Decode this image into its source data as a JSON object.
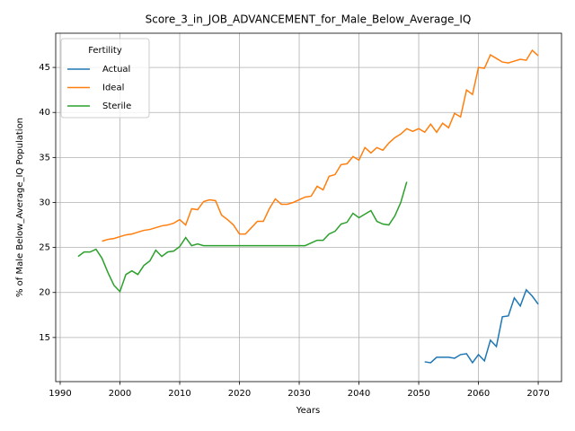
{
  "chart_data": {
    "type": "line",
    "title": "Score_3_in_JOB_ADVANCEMENT_for_Male_Below_Average_IQ",
    "x_label": "Years",
    "y_label": "% of Male Below_Average_IQ Population",
    "legend_title": "Fertility",
    "legend": "upper left",
    "grid": true,
    "x": [
      1993,
      1994,
      1995,
      1996,
      1997,
      1998,
      1999,
      2000,
      2001,
      2002,
      2003,
      2004,
      2005,
      2006,
      2007,
      2008,
      2009,
      2010,
      2011,
      2012,
      2013,
      2014,
      2015,
      2016,
      2017,
      2018,
      2019,
      2020,
      2021,
      2022,
      2023,
      2024,
      2025,
      2026,
      2027,
      2028,
      2029,
      2030,
      2031,
      2032,
      2033,
      2034,
      2035,
      2036,
      2037,
      2038,
      2039,
      2040,
      2041,
      2042,
      2043,
      2044,
      2045,
      2046,
      2047,
      2048,
      2049,
      2050,
      2051,
      2052,
      2053,
      2054,
      2055,
      2056,
      2057,
      2058,
      2059,
      2060,
      2061,
      2062,
      2063,
      2064,
      2065,
      2066,
      2067,
      2068,
      2069,
      2070
    ],
    "series": [
      {
        "name": "Actual",
        "color": "#1f77b4",
        "values": [
          null,
          null,
          null,
          null,
          null,
          null,
          null,
          null,
          null,
          null,
          null,
          null,
          null,
          null,
          null,
          null,
          null,
          null,
          null,
          null,
          null,
          null,
          null,
          null,
          null,
          null,
          null,
          null,
          null,
          null,
          null,
          null,
          null,
          null,
          null,
          null,
          null,
          null,
          null,
          null,
          null,
          null,
          null,
          null,
          null,
          null,
          null,
          null,
          null,
          null,
          null,
          null,
          null,
          null,
          null,
          null,
          null,
          null,
          12.3,
          12.2,
          12.8,
          12.8,
          12.8,
          12.7,
          13.1,
          13.2,
          12.2,
          13.1,
          12.4,
          14.7,
          14.0,
          17.3,
          17.4,
          19.4,
          18.5,
          20.3,
          19.6,
          18.7
        ]
      },
      {
        "name": "Ideal",
        "color": "#ff7f0e",
        "values": [
          null,
          null,
          null,
          null,
          25.7,
          25.9,
          26.0,
          26.2,
          26.4,
          26.5,
          26.7,
          26.9,
          27.0,
          27.2,
          27.4,
          27.5,
          27.7,
          28.1,
          27.5,
          29.3,
          29.2,
          30.1,
          30.3,
          30.2,
          28.6,
          28.1,
          27.5,
          26.5,
          26.5,
          27.2,
          27.9,
          27.9,
          29.3,
          30.4,
          29.8,
          29.8,
          30.0,
          30.3,
          30.6,
          30.7,
          31.8,
          31.4,
          32.9,
          33.1,
          34.2,
          34.3,
          35.1,
          34.7,
          36.1,
          35.5,
          36.1,
          35.8,
          36.6,
          37.2,
          37.6,
          38.2,
          37.9,
          38.2,
          37.8,
          38.7,
          37.8,
          38.8,
          38.3,
          39.9,
          39.5,
          42.5,
          42.0,
          45.0,
          44.9,
          46.4,
          46.0,
          45.6,
          45.5,
          45.7,
          45.9,
          45.8,
          46.9,
          46.3
        ]
      },
      {
        "name": "Sterile",
        "color": "#2ca02c",
        "values": [
          24.0,
          24.5,
          24.5,
          24.8,
          23.8,
          22.2,
          20.8,
          20.1,
          22.0,
          22.4,
          22.0,
          23.0,
          23.5,
          24.7,
          24.0,
          24.5,
          24.6,
          25.1,
          26.1,
          25.2,
          25.4,
          25.2,
          25.2,
          25.2,
          25.2,
          25.2,
          25.2,
          25.2,
          25.2,
          25.2,
          25.2,
          25.2,
          25.2,
          25.2,
          25.2,
          25.2,
          25.2,
          25.2,
          25.2,
          25.5,
          25.8,
          25.8,
          26.5,
          26.8,
          27.6,
          27.8,
          28.8,
          28.3,
          28.7,
          29.1,
          27.9,
          27.6,
          27.5,
          28.5,
          30.0,
          32.3,
          null,
          null,
          null,
          null,
          null,
          null,
          null,
          null,
          null,
          null,
          null,
          null,
          null,
          null,
          null,
          null,
          null,
          null,
          null,
          null,
          null,
          null
        ]
      }
    ],
    "xlim": [
      1989.25,
      2073.9
    ],
    "ylim": [
      10.1,
      48.8
    ],
    "xticks": [
      1990,
      2000,
      2010,
      2020,
      2030,
      2040,
      2050,
      2060,
      2070
    ],
    "yticks": [
      15,
      20,
      25,
      30,
      35,
      40,
      45
    ]
  }
}
